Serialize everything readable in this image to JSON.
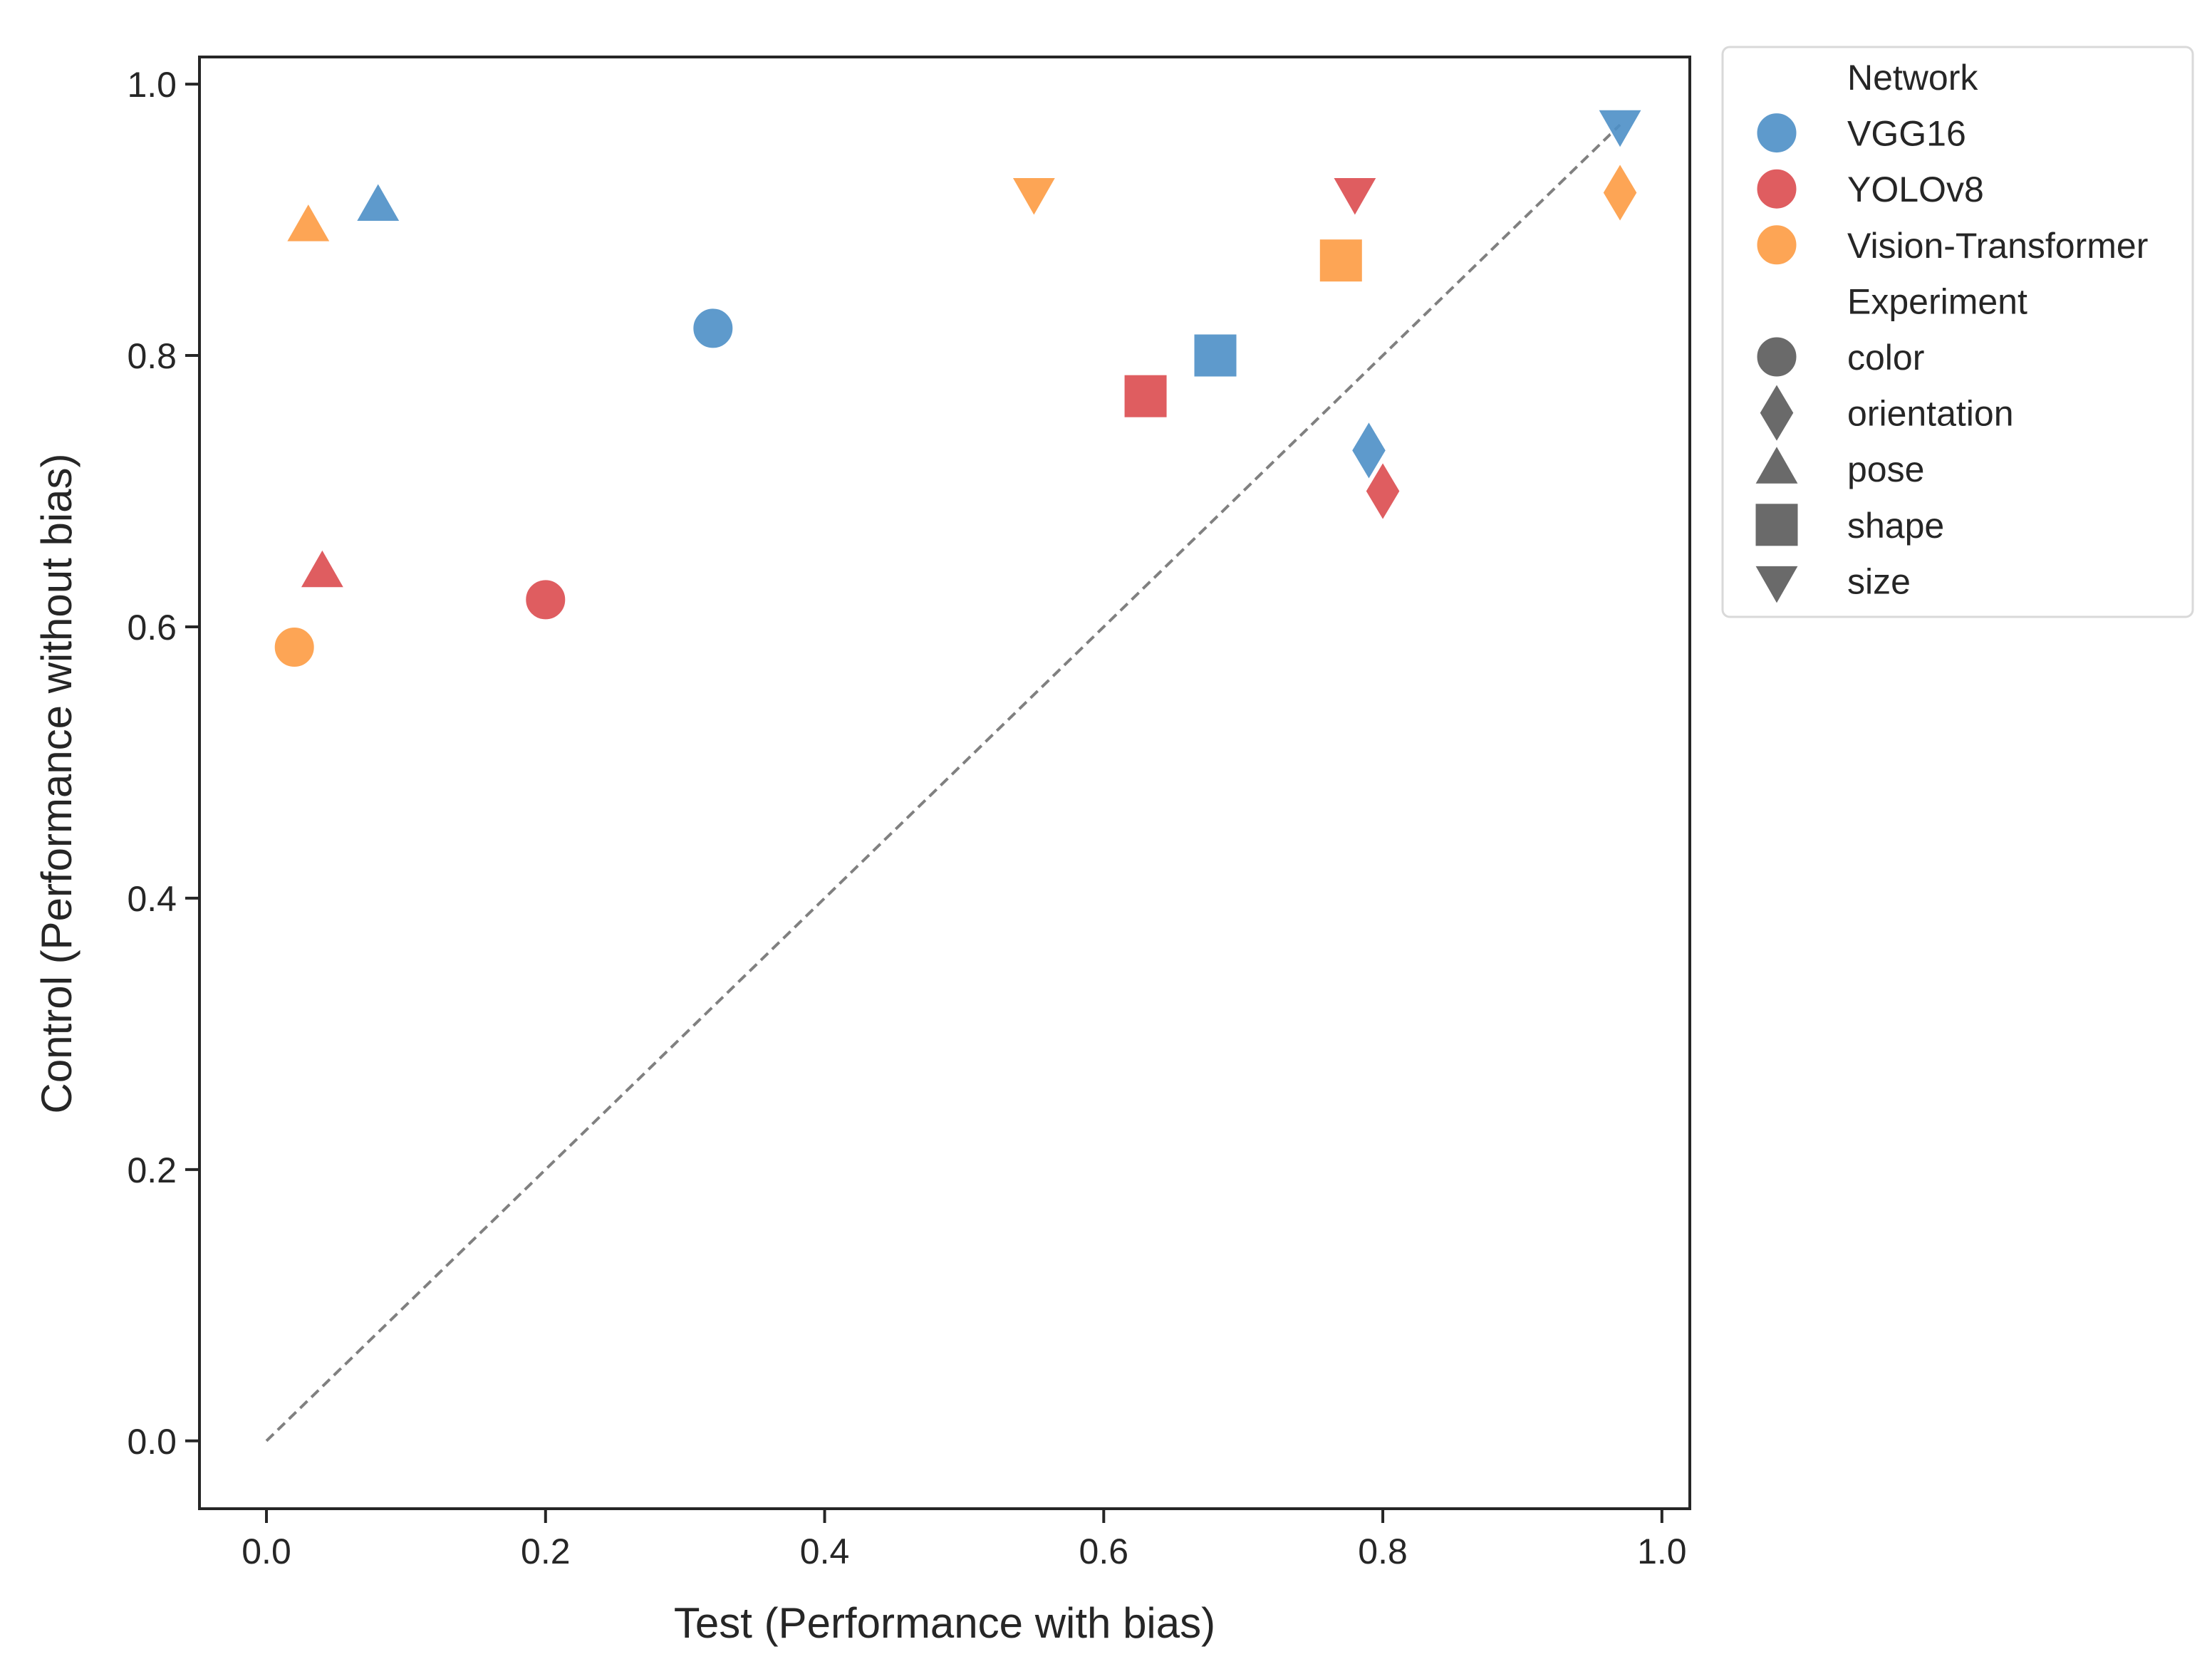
{
  "chart_data": {
    "type": "scatter",
    "title": "",
    "xlabel": "Test (Performance with bias)",
    "ylabel": "Control (Performance without bias)",
    "xlim": [
      -0.048,
      1.02
    ],
    "ylim": [
      -0.05,
      1.02
    ],
    "xticks": [
      0.0,
      0.2,
      0.4,
      0.6,
      0.8,
      1.0
    ],
    "yticks": [
      0.0,
      0.2,
      0.4,
      0.6,
      0.8,
      1.0
    ],
    "reference_line": {
      "from": [
        0.0,
        0.0
      ],
      "to": [
        0.97,
        0.97
      ],
      "style": "dashed",
      "color": "#808080"
    },
    "networks": [
      {
        "name": "VGG16",
        "color": "#4c8fc7"
      },
      {
        "name": "YOLOv8",
        "color": "#db4b4f"
      },
      {
        "name": "Vision-Transformer",
        "color": "#fd9b42"
      }
    ],
    "experiments": [
      {
        "name": "color",
        "marker": "circle"
      },
      {
        "name": "orientation",
        "marker": "diamond"
      },
      {
        "name": "pose",
        "marker": "triangle-up"
      },
      {
        "name": "shape",
        "marker": "square"
      },
      {
        "name": "size",
        "marker": "triangle-down"
      }
    ],
    "points": [
      {
        "network": "VGG16",
        "experiment": "color",
        "x": 0.32,
        "y": 0.82
      },
      {
        "network": "VGG16",
        "experiment": "orientation",
        "x": 0.79,
        "y": 0.73
      },
      {
        "network": "VGG16",
        "experiment": "pose",
        "x": 0.08,
        "y": 0.91
      },
      {
        "network": "VGG16",
        "experiment": "shape",
        "x": 0.68,
        "y": 0.8
      },
      {
        "network": "VGG16",
        "experiment": "size",
        "x": 0.97,
        "y": 0.97
      },
      {
        "network": "YOLOv8",
        "experiment": "color",
        "x": 0.2,
        "y": 0.62
      },
      {
        "network": "YOLOv8",
        "experiment": "orientation",
        "x": 0.8,
        "y": 0.7
      },
      {
        "network": "YOLOv8",
        "experiment": "pose",
        "x": 0.04,
        "y": 0.64
      },
      {
        "network": "YOLOv8",
        "experiment": "shape",
        "x": 0.63,
        "y": 0.77
      },
      {
        "network": "YOLOv8",
        "experiment": "size",
        "x": 0.78,
        "y": 0.92
      },
      {
        "network": "Vision-Transformer",
        "experiment": "color",
        "x": 0.02,
        "y": 0.585
      },
      {
        "network": "Vision-Transformer",
        "experiment": "orientation",
        "x": 0.97,
        "y": 0.92
      },
      {
        "network": "Vision-Transformer",
        "experiment": "pose",
        "x": 0.03,
        "y": 0.895
      },
      {
        "network": "Vision-Transformer",
        "experiment": "shape",
        "x": 0.77,
        "y": 0.87
      },
      {
        "network": "Vision-Transformer",
        "experiment": "size",
        "x": 0.55,
        "y": 0.92
      }
    ],
    "legend": {
      "placement": "outside-right-top",
      "network_title": "Network",
      "experiment_title": "Experiment",
      "neutral_marker_color": "#6a6a6a"
    }
  }
}
